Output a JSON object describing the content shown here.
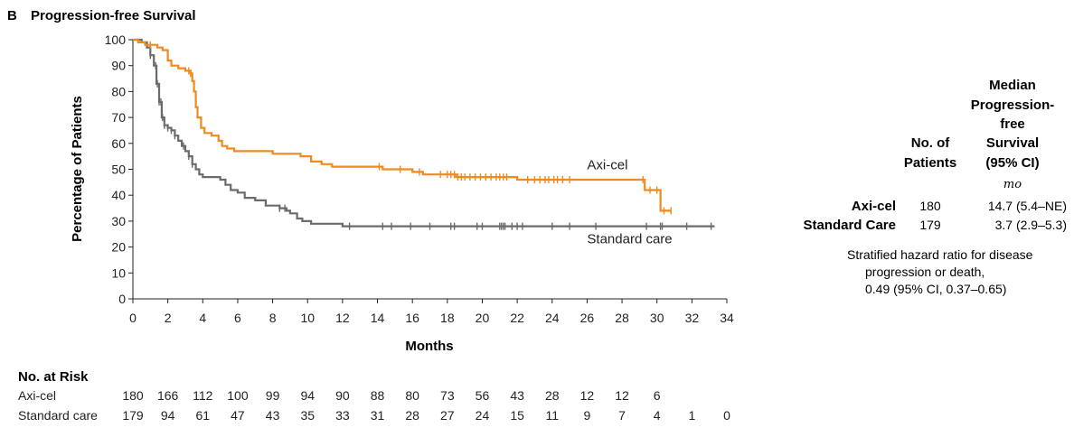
{
  "panel": {
    "letter": "B",
    "title": "Progression-free Survival"
  },
  "chart_data": {
    "type": "line",
    "title": "Progression-free Survival",
    "xlabel": "Months",
    "ylabel": "Percentage of Patients",
    "xlim": [
      0,
      34
    ],
    "ylim": [
      0,
      100
    ],
    "x_ticks": [
      0,
      2,
      4,
      6,
      8,
      10,
      12,
      14,
      16,
      18,
      20,
      22,
      24,
      26,
      28,
      30,
      32,
      34
    ],
    "y_ticks": [
      0,
      10,
      20,
      30,
      40,
      50,
      60,
      70,
      80,
      90,
      100
    ],
    "grid": false,
    "series": [
      {
        "name": "Axi-cel",
        "color": "#ee8a1e",
        "points": [
          [
            0,
            100
          ],
          [
            0.3,
            99
          ],
          [
            0.7,
            98
          ],
          [
            1.0,
            98
          ],
          [
            1.4,
            97
          ],
          [
            1.7,
            96
          ],
          [
            2.0,
            92
          ],
          [
            2.2,
            90
          ],
          [
            2.6,
            89
          ],
          [
            3.0,
            88
          ],
          [
            3.3,
            87
          ],
          [
            3.4,
            84
          ],
          [
            3.5,
            80
          ],
          [
            3.6,
            74
          ],
          [
            3.7,
            70
          ],
          [
            3.9,
            66
          ],
          [
            4.1,
            64
          ],
          [
            4.5,
            63
          ],
          [
            4.9,
            61
          ],
          [
            5.1,
            59
          ],
          [
            5.4,
            58
          ],
          [
            5.8,
            57
          ],
          [
            7.5,
            57
          ],
          [
            8.0,
            56
          ],
          [
            9.0,
            56
          ],
          [
            9.6,
            55
          ],
          [
            10.2,
            53
          ],
          [
            10.8,
            52
          ],
          [
            11.4,
            51
          ],
          [
            12.2,
            51
          ],
          [
            13.0,
            51
          ],
          [
            14.3,
            50
          ],
          [
            15.0,
            50
          ],
          [
            16.0,
            49
          ],
          [
            16.6,
            48
          ],
          [
            17.2,
            48
          ],
          [
            18.0,
            48
          ],
          [
            18.5,
            47
          ],
          [
            21.0,
            47
          ],
          [
            22.0,
            46
          ],
          [
            29.0,
            46
          ],
          [
            29.3,
            42
          ],
          [
            30.1,
            42
          ],
          [
            30.2,
            34
          ],
          [
            30.8,
            34
          ]
        ],
        "censor_x": [
          1.0,
          3.2,
          3.3,
          14.1,
          15.3,
          16.4,
          17.6,
          18.0,
          18.2,
          18.4,
          18.6,
          18.8,
          19.0,
          19.3,
          19.6,
          19.9,
          20.2,
          20.5,
          20.8,
          21.0,
          21.2,
          21.4,
          22.6,
          23.0,
          23.3,
          23.6,
          23.8,
          24.1,
          24.3,
          24.6,
          25.0,
          29.2,
          29.6,
          30.0,
          30.4,
          30.8
        ]
      },
      {
        "name": "Standard care",
        "color": "#6b6b6b",
        "points": [
          [
            0,
            100
          ],
          [
            0.5,
            99
          ],
          [
            0.8,
            97
          ],
          [
            1.0,
            94
          ],
          [
            1.2,
            90
          ],
          [
            1.35,
            83
          ],
          [
            1.5,
            76
          ],
          [
            1.65,
            70
          ],
          [
            1.8,
            67
          ],
          [
            2.0,
            66
          ],
          [
            2.2,
            65
          ],
          [
            2.4,
            63
          ],
          [
            2.6,
            61
          ],
          [
            2.8,
            59
          ],
          [
            3.0,
            57
          ],
          [
            3.2,
            55
          ],
          [
            3.4,
            52
          ],
          [
            3.6,
            50
          ],
          [
            3.8,
            48
          ],
          [
            4.0,
            47
          ],
          [
            4.6,
            47
          ],
          [
            5.0,
            46
          ],
          [
            5.3,
            44
          ],
          [
            5.6,
            42
          ],
          [
            6.0,
            41
          ],
          [
            6.4,
            39
          ],
          [
            7.0,
            38
          ],
          [
            7.6,
            36
          ],
          [
            8.4,
            35
          ],
          [
            8.8,
            34
          ],
          [
            9.0,
            33
          ],
          [
            9.4,
            31
          ],
          [
            9.7,
            30
          ],
          [
            10.2,
            29
          ],
          [
            12.0,
            28
          ],
          [
            12.2,
            28
          ],
          [
            33.3,
            28
          ]
        ],
        "censor_x": [
          1.0,
          1.3,
          1.4,
          1.5,
          1.6,
          1.7,
          1.8,
          2.0,
          2.2,
          2.4,
          2.9,
          3.2,
          3.4,
          8.4,
          8.7,
          12.4,
          14.3,
          14.8,
          15.9,
          17.0,
          18.2,
          18.4,
          19.7,
          20.0,
          21.0,
          21.1,
          21.2,
          21.3,
          21.7,
          22.0,
          22.3,
          24.0,
          25.0,
          26.5,
          29.4,
          30.2,
          30.3,
          31.7,
          33.1
        ]
      }
    ],
    "annotations": [
      {
        "text": "Axi-cel",
        "x": 26.0,
        "y": 50.0
      },
      {
        "text": "Standard care",
        "x": 26.0,
        "y": 21.5
      }
    ]
  },
  "risk_table": {
    "heading": "No. at Risk",
    "time_points": [
      0,
      2,
      4,
      6,
      8,
      10,
      12,
      14,
      16,
      18,
      20,
      22,
      24,
      26,
      28,
      30,
      32,
      34
    ],
    "rows": [
      {
        "label": "Axi-cel",
        "values": [
          "180",
          "166",
          "112",
          "100",
          "99",
          "94",
          "90",
          "88",
          "80",
          "73",
          "56",
          "43",
          "28",
          "12",
          "12",
          "6",
          "",
          ""
        ]
      },
      {
        "label": "Standard care",
        "values": [
          "179",
          "94",
          "61",
          "47",
          "43",
          "35",
          "33",
          "31",
          "28",
          "27",
          "24",
          "15",
          "11",
          "9",
          "7",
          "4",
          "1",
          "0"
        ]
      }
    ]
  },
  "summary_table": {
    "col1_header": [
      "No. of",
      "Patients"
    ],
    "col2_header": [
      "Median",
      "Progression-",
      "free",
      "Survival",
      "(95% CI)"
    ],
    "unit": "mo",
    "rows": [
      {
        "label": "Axi-cel",
        "n": "180",
        "median": "14.7 (5.4–NE)"
      },
      {
        "label": "Standard Care",
        "n": "179",
        "median": "3.7 (2.9–5.3)"
      }
    ],
    "hazard_lines": [
      "Stratified hazard ratio for disease",
      "progression or death,",
      "0.49 (95% CI, 0.37–0.65)"
    ]
  }
}
